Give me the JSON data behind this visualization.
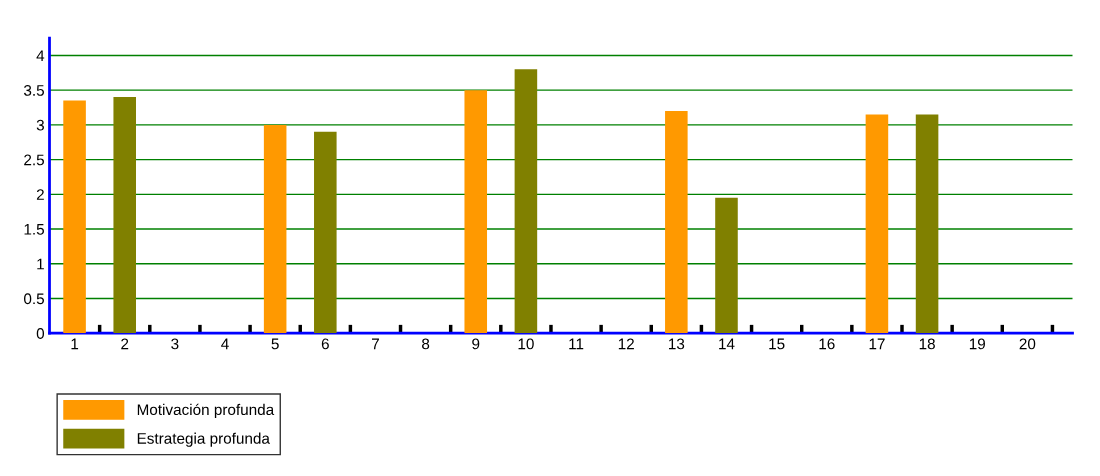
{
  "chart_data": {
    "type": "bar",
    "categories": [
      "1",
      "2",
      "3",
      "4",
      "5",
      "6",
      "7",
      "8",
      "9",
      "10",
      "11",
      "12",
      "13",
      "14",
      "15",
      "16",
      "17",
      "18",
      "19",
      "20"
    ],
    "series": [
      {
        "name": "Motivación profunda",
        "color": "#ff9900",
        "values": [
          3.35,
          null,
          null,
          null,
          3.0,
          null,
          null,
          null,
          3.5,
          null,
          null,
          null,
          3.2,
          null,
          null,
          null,
          3.15,
          null,
          null,
          null
        ]
      },
      {
        "name": "Estrategia profunda",
        "color": "#808000",
        "values": [
          null,
          3.4,
          null,
          null,
          null,
          2.9,
          null,
          null,
          null,
          3.8,
          null,
          null,
          null,
          1.95,
          null,
          null,
          null,
          3.15,
          null,
          null
        ]
      }
    ],
    "ylim": [
      0,
      4.25
    ],
    "yticks": [
      0,
      0.5,
      1,
      1.5,
      2,
      2.5,
      3,
      3.5,
      4
    ],
    "grid": "y",
    "legend": "bottom left"
  }
}
